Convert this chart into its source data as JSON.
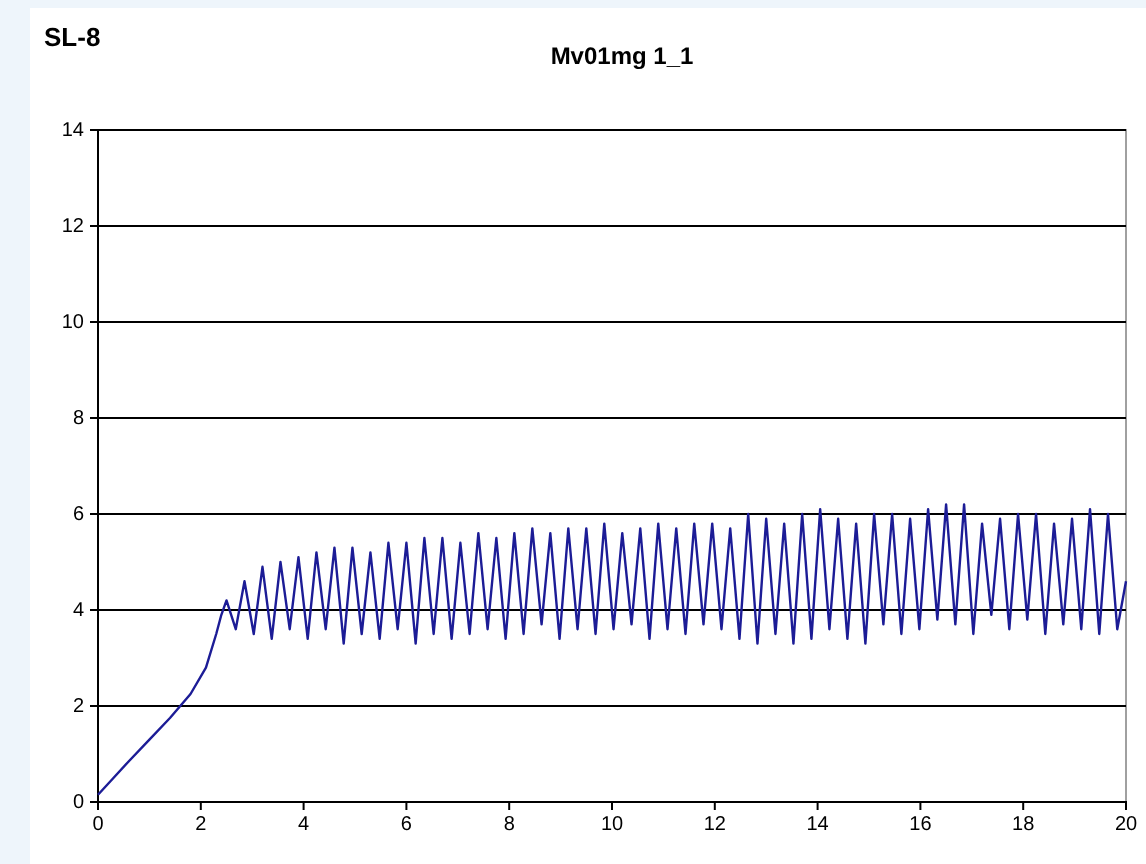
{
  "chart_data": {
    "type": "line",
    "title": "Mv01mg 1_1",
    "annotations": [
      "SL-8"
    ],
    "xlim": [
      0,
      20
    ],
    "xticks": [
      0,
      2,
      4,
      6,
      8,
      10,
      12,
      14,
      16,
      18,
      20
    ],
    "ylim": [
      0,
      14
    ],
    "yticks": [
      0,
      2,
      4,
      6,
      8,
      10,
      12,
      14
    ],
    "grid": "y",
    "marker": "none",
    "line_style": "solid",
    "series": [
      {
        "color": "#1c1c96",
        "x": [
          0,
          0.3,
          0.6,
          1.0,
          1.4,
          1.8,
          2.1,
          2.3,
          2.4,
          2.5,
          2.68,
          2.85,
          3.03,
          3.2,
          3.38,
          3.55,
          3.73,
          3.9,
          4.08,
          4.25,
          4.43,
          4.6,
          4.78,
          4.95,
          5.13,
          5.3,
          5.48,
          5.65,
          5.83,
          6.0,
          6.18,
          6.35,
          6.53,
          6.7,
          6.88,
          7.05,
          7.23,
          7.4,
          7.58,
          7.75,
          7.93,
          8.1,
          8.28,
          8.45,
          8.63,
          8.8,
          8.98,
          9.15,
          9.33,
          9.5,
          9.68,
          9.85,
          10.03,
          10.2,
          10.38,
          10.55,
          10.73,
          10.9,
          11.08,
          11.25,
          11.43,
          11.6,
          11.78,
          11.95,
          12.13,
          12.3,
          12.48,
          12.65,
          12.83,
          13.0,
          13.18,
          13.35,
          13.53,
          13.7,
          13.88,
          14.05,
          14.23,
          14.4,
          14.58,
          14.75,
          14.93,
          15.1,
          15.28,
          15.45,
          15.63,
          15.8,
          15.98,
          16.15,
          16.33,
          16.5,
          16.68,
          16.85,
          17.03,
          17.2,
          17.38,
          17.55,
          17.73,
          17.9,
          18.08,
          18.25,
          18.43,
          18.6,
          18.78,
          18.95,
          19.13,
          19.3,
          19.48,
          19.65,
          19.83,
          20.0
        ],
        "values": [
          0.15,
          0.5,
          0.85,
          1.3,
          1.75,
          2.25,
          2.8,
          3.5,
          3.9,
          4.2,
          3.6,
          4.6,
          3.5,
          4.9,
          3.4,
          5.0,
          3.6,
          5.1,
          3.4,
          5.2,
          3.6,
          5.3,
          3.3,
          5.3,
          3.5,
          5.2,
          3.4,
          5.4,
          3.6,
          5.4,
          3.3,
          5.5,
          3.5,
          5.5,
          3.4,
          5.4,
          3.5,
          5.6,
          3.6,
          5.5,
          3.4,
          5.6,
          3.5,
          5.7,
          3.7,
          5.6,
          3.4,
          5.7,
          3.6,
          5.7,
          3.5,
          5.8,
          3.6,
          5.6,
          3.7,
          5.7,
          3.4,
          5.8,
          3.6,
          5.7,
          3.5,
          5.8,
          3.7,
          5.8,
          3.6,
          5.7,
          3.4,
          6.0,
          3.3,
          5.9,
          3.5,
          5.8,
          3.3,
          6.0,
          3.4,
          6.1,
          3.6,
          5.9,
          3.4,
          5.8,
          3.3,
          6.0,
          3.7,
          6.0,
          3.5,
          5.9,
          3.6,
          6.1,
          3.8,
          6.2,
          3.7,
          6.2,
          3.5,
          5.8,
          3.9,
          5.9,
          3.6,
          6.0,
          3.8,
          6.0,
          3.5,
          5.8,
          3.7,
          5.9,
          3.6,
          6.1,
          3.5,
          6.0,
          3.6,
          4.6
        ]
      }
    ]
  }
}
